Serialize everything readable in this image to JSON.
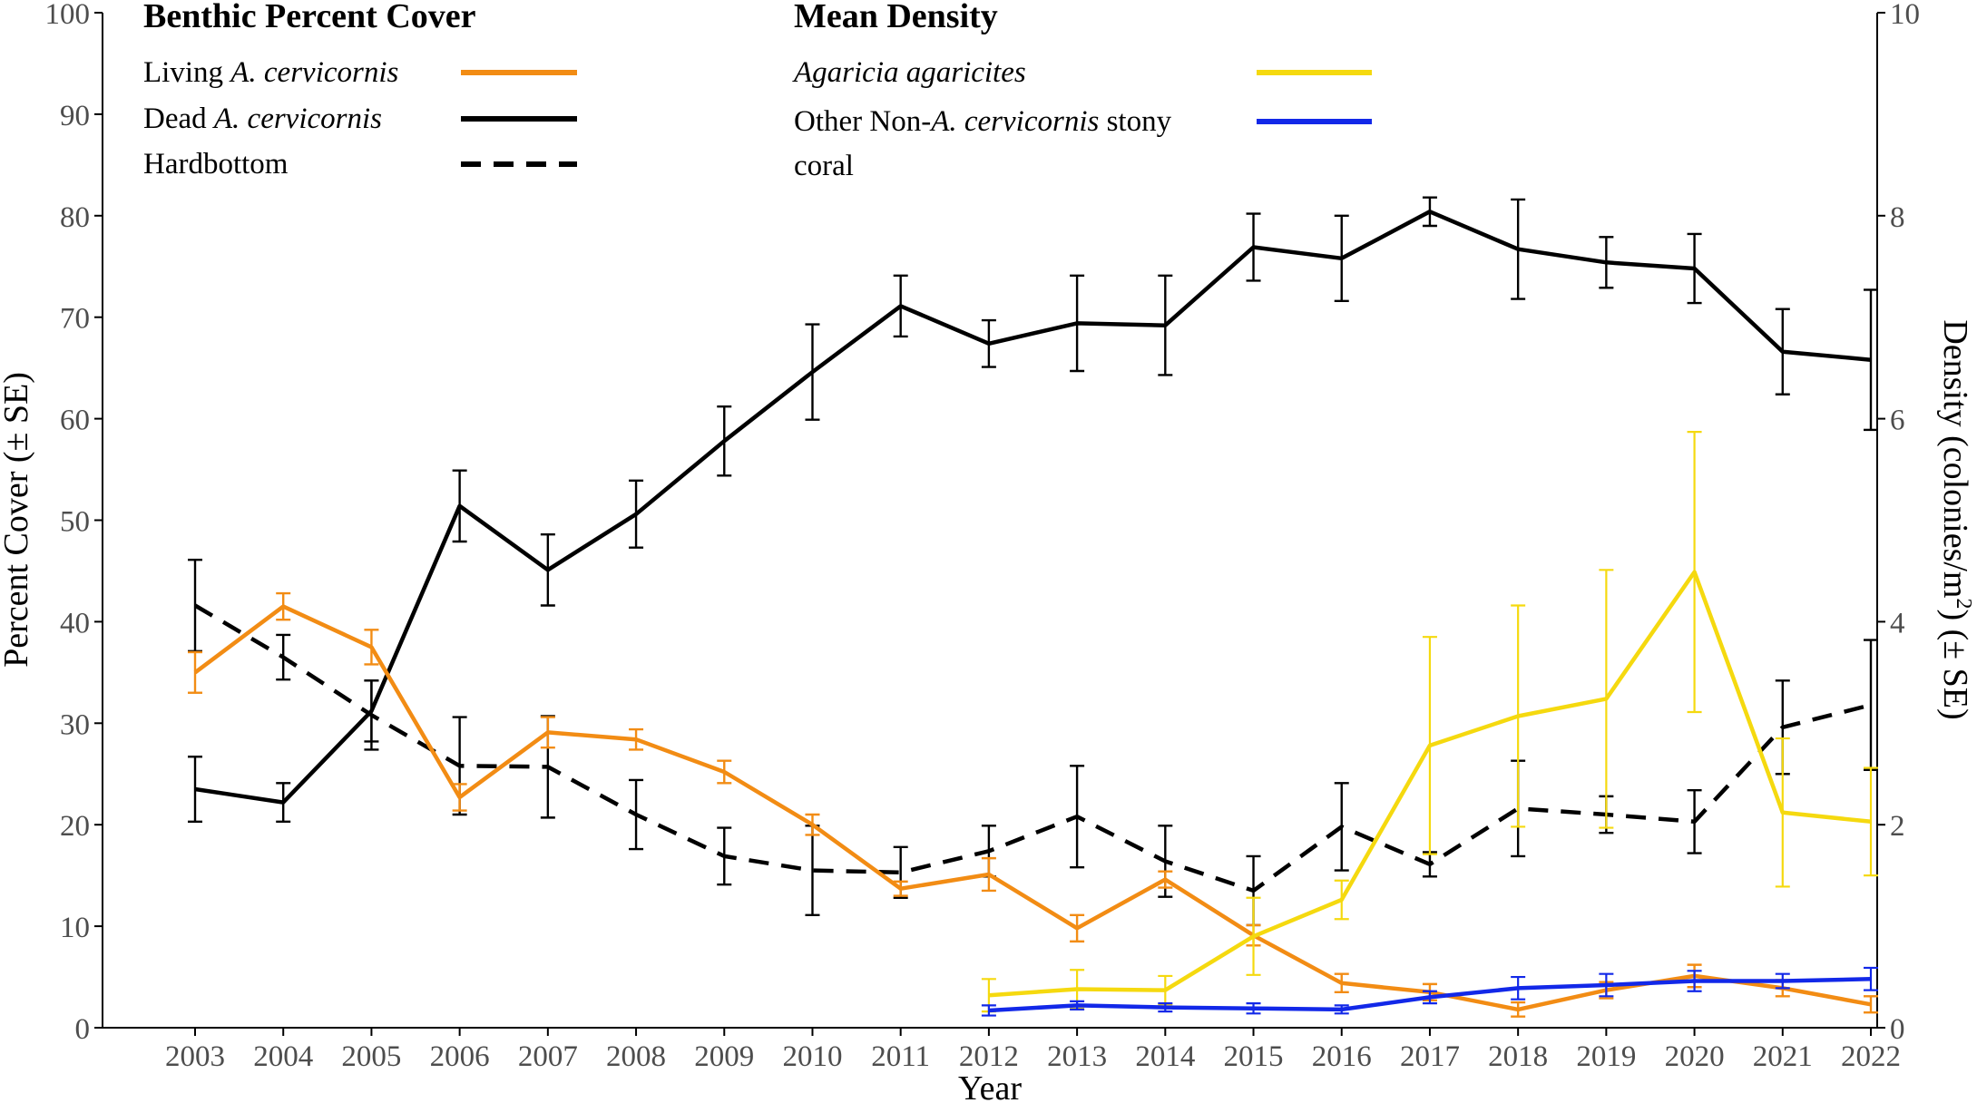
{
  "chart_data": {
    "type": "line",
    "x": [
      2003,
      2004,
      2005,
      2006,
      2007,
      2008,
      2009,
      2010,
      2011,
      2012,
      2013,
      2014,
      2015,
      2016,
      2017,
      2018,
      2019,
      2020,
      2021,
      2022
    ],
    "x_tick_labels": [
      "2003",
      "2004",
      "2005",
      "2006",
      "2007",
      "2008",
      "2009",
      "2010",
      "2011",
      "2012",
      "2013",
      "2014",
      "2015",
      "2016",
      "2017",
      "2018",
      "2019",
      "2020",
      "2021",
      "2022"
    ],
    "xlabel": "Year",
    "ylabel_left": "Percent Cover (± SE)",
    "ylabel_right_main": "Density (colonies/m",
    "ylabel_right_sup": "2",
    "ylabel_right_end": ") (± SE)",
    "ylim_left": [
      0,
      100
    ],
    "ylim_right": [
      0,
      10
    ],
    "y_left_ticks": [
      0,
      10,
      20,
      30,
      40,
      50,
      60,
      70,
      80,
      90,
      100
    ],
    "y_right_ticks": [
      0,
      2,
      4,
      6,
      8,
      10
    ],
    "legend_groups": [
      {
        "title": "Benthic Percent Cover",
        "entries": [
          {
            "series_index": 0,
            "parts": [
              {
                "t": "Living ",
                "i": false
              },
              {
                "t": "A. cervicornis",
                "i": true
              }
            ]
          },
          {
            "series_index": 1,
            "parts": [
              {
                "t": "Dead ",
                "i": false
              },
              {
                "t": "A. cervicornis",
                "i": true
              }
            ]
          },
          {
            "series_index": 2,
            "parts": [
              {
                "t": "Hardbottom",
                "i": false
              }
            ]
          }
        ]
      },
      {
        "title": "Mean Density",
        "entries": [
          {
            "series_index": 3,
            "parts": [
              {
                "t": "Agaricia agaricites",
                "i": true
              }
            ]
          },
          {
            "series_index": 4,
            "parts": [
              {
                "t": "Other Non-",
                "i": false
              },
              {
                "t": "A. cervicornis",
                "i": true
              },
              {
                "t": " stony",
                "i": false
              }
            ],
            "line2": "coral"
          }
        ]
      }
    ],
    "series": [
      {
        "name": "Living A. cervicornis",
        "axis": "left",
        "color": "#F28C14",
        "dash": "solid",
        "x": [
          2003,
          2004,
          2005,
          2006,
          2007,
          2008,
          2009,
          2010,
          2011,
          2012,
          2013,
          2014,
          2015,
          2016,
          2017,
          2018,
          2019,
          2020,
          2021,
          2022
        ],
        "values": [
          35.0,
          41.5,
          37.5,
          22.7,
          29.1,
          28.4,
          25.2,
          20.0,
          13.7,
          15.1,
          9.8,
          14.6,
          9.1,
          4.4,
          3.5,
          1.8,
          3.7,
          5.1,
          3.9,
          2.3
        ],
        "err": [
          2.0,
          1.3,
          1.7,
          1.3,
          1.5,
          1.0,
          1.1,
          1.0,
          0.7,
          1.6,
          1.3,
          0.8,
          1.0,
          0.9,
          0.8,
          0.7,
          0.8,
          1.1,
          0.8,
          0.8
        ]
      },
      {
        "name": "Dead A. cervicornis",
        "axis": "left",
        "color": "#000000",
        "dash": "solid",
        "x": [
          2003,
          2004,
          2005,
          2006,
          2007,
          2008,
          2009,
          2010,
          2011,
          2012,
          2013,
          2014,
          2015,
          2016,
          2017,
          2018,
          2019,
          2020,
          2021,
          2022
        ],
        "values": [
          23.5,
          22.2,
          31.2,
          51.4,
          45.1,
          50.6,
          57.8,
          64.6,
          71.1,
          67.4,
          69.4,
          69.2,
          76.9,
          75.8,
          80.4,
          76.7,
          75.4,
          74.8,
          66.6,
          65.8
        ],
        "err": [
          3.2,
          1.9,
          3.0,
          3.5,
          3.5,
          3.3,
          3.4,
          4.7,
          3.0,
          2.3,
          4.7,
          4.9,
          3.3,
          4.2,
          1.4,
          4.9,
          2.5,
          3.4,
          4.2,
          6.9
        ]
      },
      {
        "name": "Hardbottom",
        "axis": "left",
        "color": "#000000",
        "dash": "dashed",
        "x": [
          2003,
          2004,
          2005,
          2006,
          2007,
          2008,
          2009,
          2010,
          2011,
          2012,
          2013,
          2014,
          2015,
          2016,
          2017,
          2018,
          2019,
          2020,
          2021,
          2022
        ],
        "values": [
          41.6,
          36.5,
          30.8,
          25.8,
          25.7,
          21.0,
          16.9,
          15.5,
          15.3,
          17.4,
          20.8,
          16.4,
          13.5,
          19.8,
          16.1,
          21.6,
          21.0,
          20.3,
          29.6,
          31.8
        ],
        "err": [
          4.5,
          2.2,
          3.4,
          4.8,
          5.0,
          3.4,
          2.8,
          4.4,
          2.5,
          2.5,
          5.0,
          3.5,
          3.4,
          4.3,
          1.2,
          4.7,
          1.8,
          3.1,
          4.6,
          6.4
        ]
      },
      {
        "name": "Agaricia agaricites",
        "axis": "right",
        "color": "#F5D90F",
        "dash": "solid",
        "x": [
          2012,
          2013,
          2014,
          2015,
          2016,
          2017,
          2018,
          2019,
          2020,
          2021,
          2022
        ],
        "values": [
          0.32,
          0.38,
          0.37,
          0.9,
          1.26,
          2.78,
          3.07,
          3.24,
          4.49,
          2.12,
          2.03
        ],
        "err": [
          0.16,
          0.19,
          0.14,
          0.38,
          0.19,
          1.07,
          1.09,
          1.27,
          1.38,
          0.73,
          0.53
        ]
      },
      {
        "name": "Other Non-A. cervicornis stony coral",
        "axis": "right",
        "color": "#1228E8",
        "dash": "solid",
        "x": [
          2012,
          2013,
          2014,
          2015,
          2016,
          2017,
          2018,
          2019,
          2020,
          2021,
          2022
        ],
        "values": [
          0.17,
          0.22,
          0.2,
          0.19,
          0.18,
          0.3,
          0.39,
          0.42,
          0.46,
          0.46,
          0.48
        ],
        "err": [
          0.05,
          0.04,
          0.04,
          0.05,
          0.04,
          0.06,
          0.11,
          0.11,
          0.1,
          0.07,
          0.11
        ]
      }
    ]
  }
}
